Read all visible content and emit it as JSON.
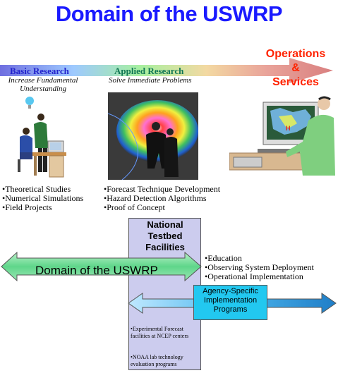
{
  "title": "Domain of the USWRP",
  "progression": {
    "basic": {
      "label": "Basic Research",
      "sub": "Increase Fundamental Understanding"
    },
    "applied": {
      "label": "Applied Research",
      "sub": "Solve Immediate Problems"
    },
    "operations": {
      "line1": "Operations",
      "line2": "&",
      "line3": "Services"
    }
  },
  "basic_bullets": [
    "Theoretical Studies",
    "Numerical Simulations",
    "Field Projects"
  ],
  "applied_bullets": [
    "Forecast Technique Development",
    "Hazard Detection Algorithms",
    "Proof of Concept"
  ],
  "ops_bullets": [
    "Education",
    "Observing System Deployment",
    "Operational Implementation"
  ],
  "testbed": {
    "title": "National Testbed Facilities",
    "notes": [
      "Experimental Forecast facilities at NCEP centers",
      "NOAA lab technology evaluation programs"
    ]
  },
  "domain_arrow_label": "Domain of the USWRP",
  "agency_box": "Agency-Specific Implementation Programs",
  "colors": {
    "title": "#1a1aff",
    "operations": "#ff2200",
    "basic_label": "#2222cc",
    "applied_label": "#117755",
    "testbed_fill": "#ccccee",
    "domain_arrow": "#5fd68a",
    "agency_arrow": "#1f9ee0"
  }
}
